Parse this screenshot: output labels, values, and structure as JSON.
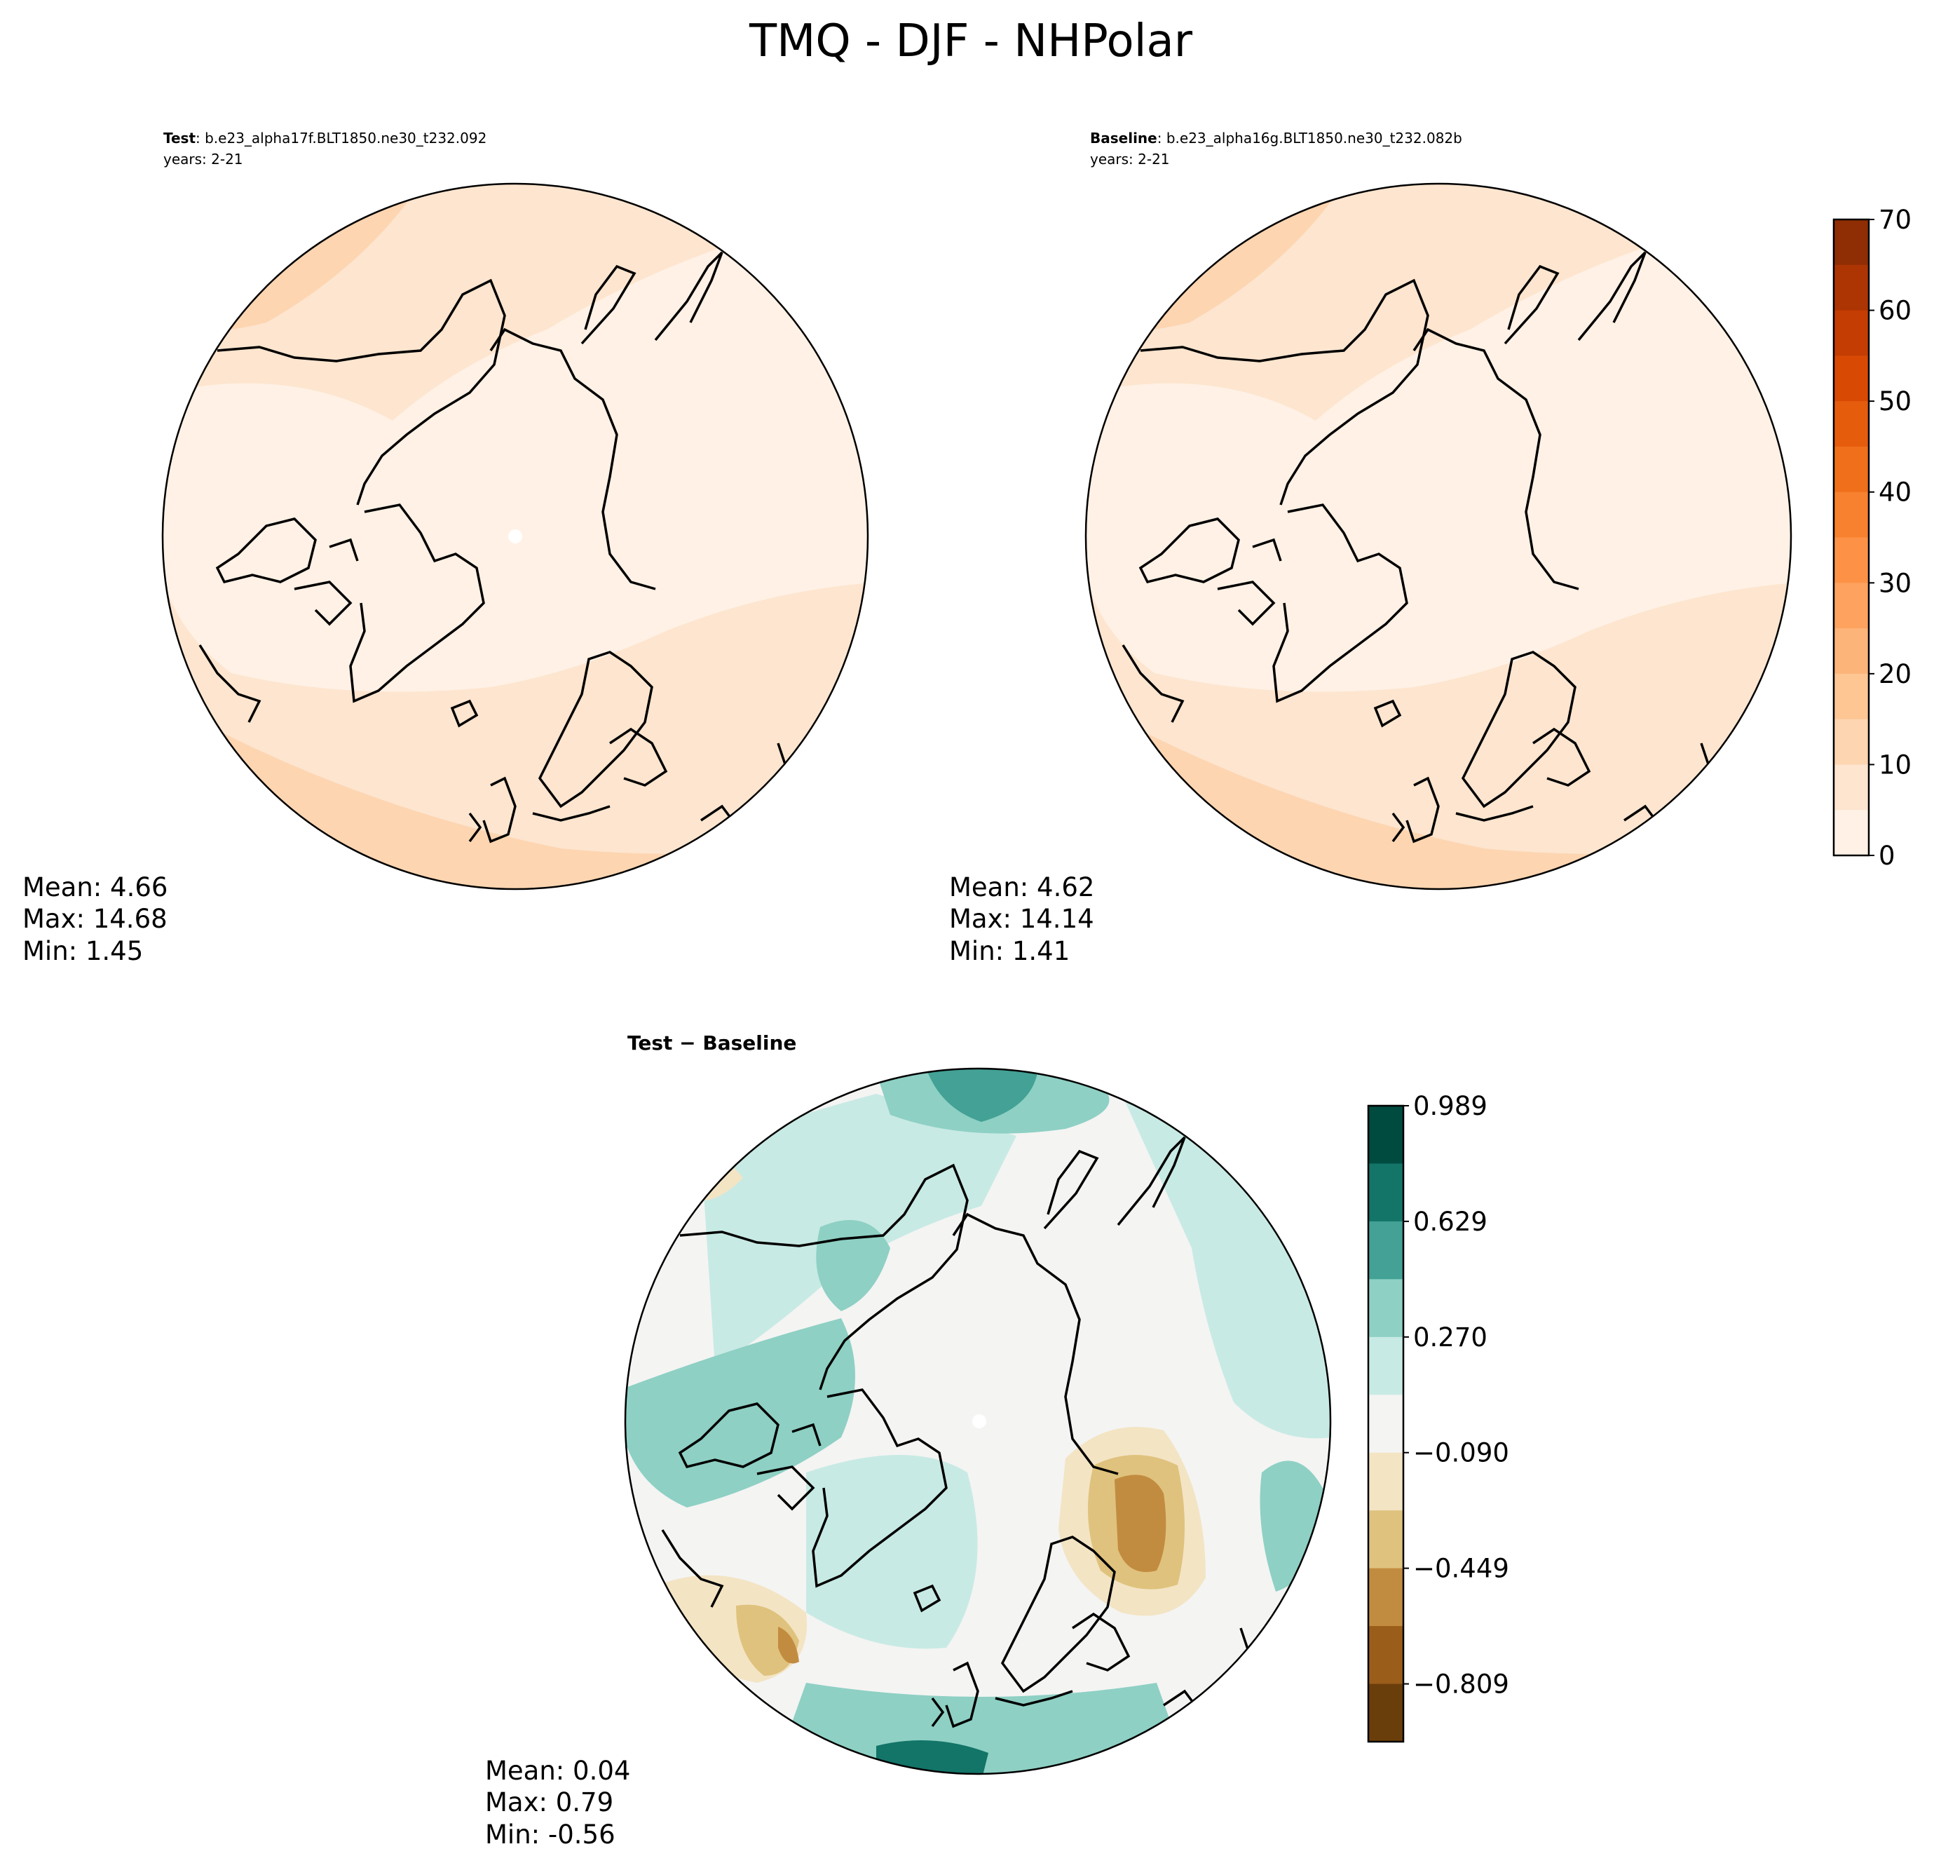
{
  "figure_title": "TMQ - DJF - NHPolar",
  "panels": {
    "test": {
      "label_bold": "Test",
      "label_rest": ": b.e23_alpha17f.BLT1850.ne30_t232.092",
      "years": "years: 2-21",
      "stats": {
        "mean": "Mean:  4.66",
        "max": "Max: 14.68",
        "min": "Min:  1.45"
      }
    },
    "baseline": {
      "label_bold": "Baseline",
      "label_rest": ": b.e23_alpha16g.BLT1850.ne30_t232.082b",
      "years": "years: 2-21",
      "stats": {
        "mean": "Mean:  4.62",
        "max": "Max: 14.14",
        "min": "Min:  1.41"
      }
    },
    "diff": {
      "label_bold": "Test − Baseline",
      "stats": {
        "mean": "Mean:  0.04",
        "max": "Max:  0.79",
        "min": "Min: -0.56"
      }
    }
  },
  "chart_data": [
    {
      "type": "heatmap",
      "projection": "north-polar-stereographic",
      "panel": "test",
      "colorbar_ticks": [
        "0",
        "10",
        "20",
        "30",
        "40",
        "50",
        "60",
        "70"
      ],
      "levels": [
        0,
        5,
        10,
        15,
        20,
        25,
        30,
        35,
        40,
        45,
        50,
        55,
        60,
        65,
        70
      ],
      "summary": {
        "mean": 4.66,
        "max": 14.68,
        "min": 1.45
      }
    },
    {
      "type": "heatmap",
      "projection": "north-polar-stereographic",
      "panel": "baseline",
      "colorbar_ticks": [
        "0",
        "10",
        "20",
        "30",
        "40",
        "50",
        "60",
        "70"
      ],
      "levels": [
        0,
        5,
        10,
        15,
        20,
        25,
        30,
        35,
        40,
        45,
        50,
        55,
        60,
        65,
        70
      ],
      "summary": {
        "mean": 4.62,
        "max": 14.14,
        "min": 1.41
      }
    },
    {
      "type": "heatmap",
      "projection": "north-polar-stereographic",
      "panel": "diff",
      "colorbar_ticks": [
        "0.989",
        "0.629",
        "0.270",
        "−0.090",
        "−0.449",
        "−0.809"
      ],
      "summary": {
        "mean": 0.04,
        "max": 0.79,
        "min": -0.56
      }
    }
  ],
  "colors": {
    "tmq_cmap": [
      "#fff1e5",
      "#fde5cf",
      "#fdd5b1",
      "#fdc693",
      "#fdb479",
      "#fda35f",
      "#fd9247",
      "#f7812e",
      "#f06f1a",
      "#e65c0d",
      "#d84a04",
      "#c43d03",
      "#ad3503",
      "#8f2d04"
    ],
    "diff_cmap": [
      "#004b40",
      "#137468",
      "#43a195",
      "#8ed0c4",
      "#c8eae4",
      "#f4f4f3",
      "#f3e4c4",
      "#dfc27d",
      "#c28c40",
      "#9b5d1a",
      "#6a3e0b"
    ],
    "coast": "#000000"
  }
}
